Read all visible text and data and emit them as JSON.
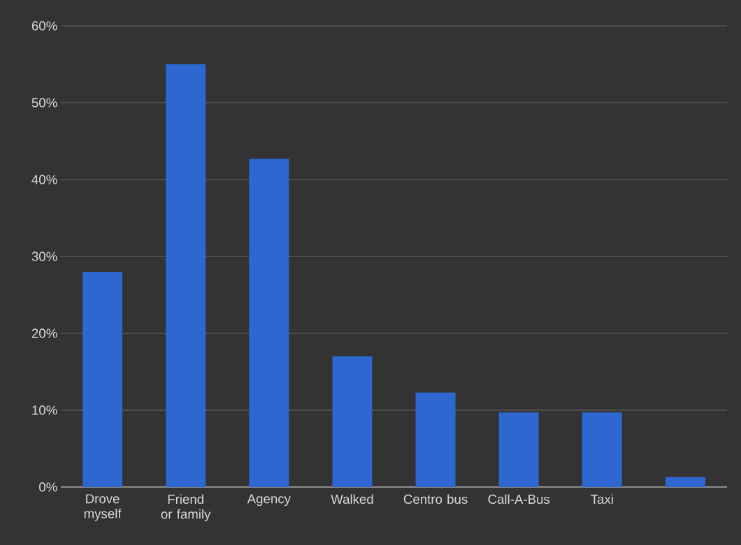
{
  "chart_data": {
    "type": "bar",
    "categories": [
      "Drove myself",
      "Friend or family",
      "Agency",
      "Walked",
      "Centro bus",
      "Call-A-Bus",
      "Taxi",
      null
    ],
    "values": [
      28,
      55,
      42.7,
      17,
      12.3,
      9.7,
      9.7,
      1.3
    ],
    "color": "#2e67d0",
    "ylim": [
      0,
      60
    ],
    "yticks": [
      {
        "value": 0,
        "label": "0%"
      },
      {
        "value": 10,
        "label": "10%"
      },
      {
        "value": 20,
        "label": "20%"
      },
      {
        "value": 30,
        "label": "30%"
      },
      {
        "value": 40,
        "label": "40%"
      },
      {
        "value": 50,
        "label": "50%"
      },
      {
        "value": 60,
        "label": "60%"
      }
    ],
    "grid": "y"
  }
}
